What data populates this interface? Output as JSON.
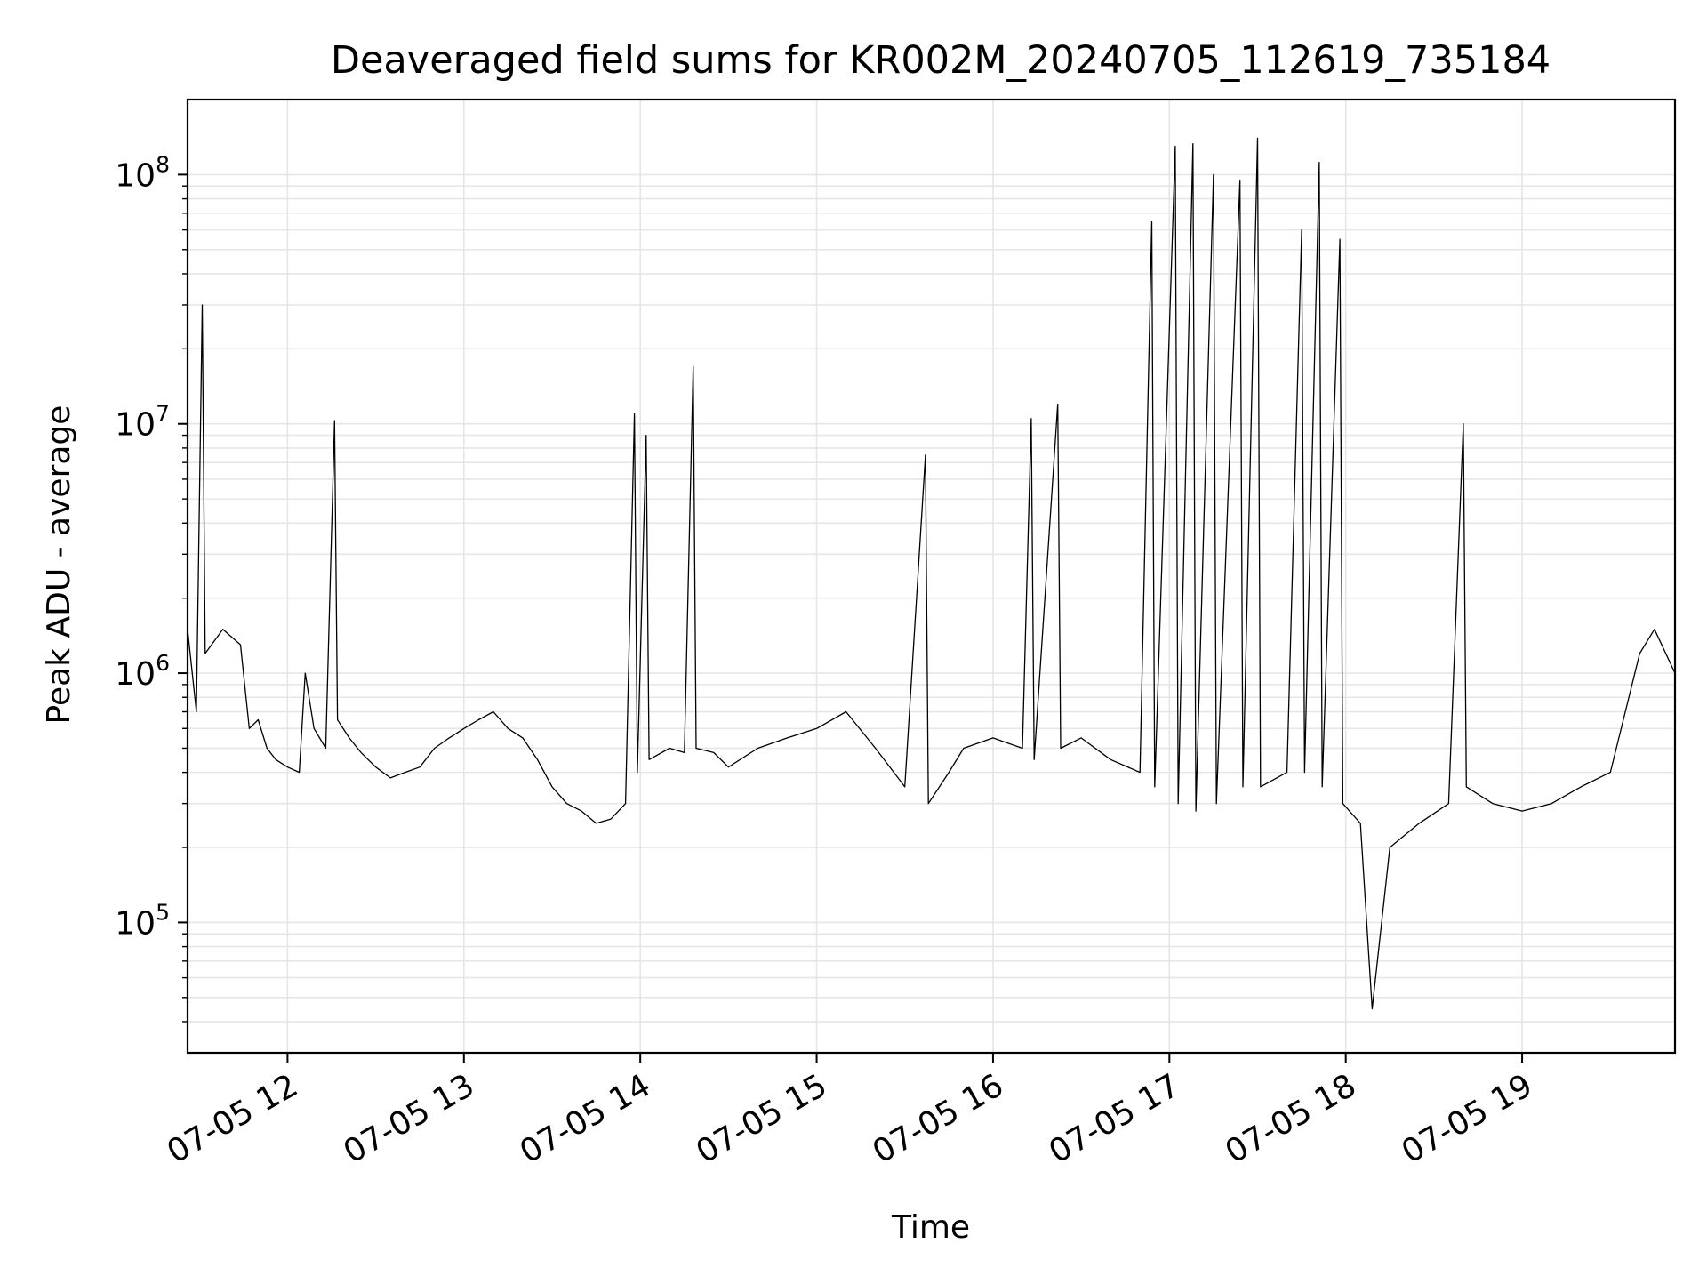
{
  "chart_data": {
    "type": "line",
    "title": "Deaveraged field sums for KR002M_20240705_112619_735184",
    "xlabel": "Time",
    "ylabel": "Peak ADU - average",
    "x_start": "2024-07-05 11:26",
    "x_end": "2024-07-05 19:52",
    "xlim": [
      "2024-07-05 11:26",
      "2024-07-05 19:52"
    ],
    "x_ticks": [
      {
        "time": "2024-07-05 12:00",
        "label": "07-05 12"
      },
      {
        "time": "2024-07-05 13:00",
        "label": "07-05 13"
      },
      {
        "time": "2024-07-05 14:00",
        "label": "07-05 14"
      },
      {
        "time": "2024-07-05 15:00",
        "label": "07-05 15"
      },
      {
        "time": "2024-07-05 16:00",
        "label": "07-05 16"
      },
      {
        "time": "2024-07-05 17:00",
        "label": "07-05 17"
      },
      {
        "time": "2024-07-05 18:00",
        "label": "07-05 18"
      },
      {
        "time": "2024-07-05 19:00",
        "label": "07-05 19"
      }
    ],
    "yscale": "log",
    "ylim": [
      30000,
      200000000
    ],
    "y_ticks": [
      {
        "value": 100000,
        "base": "10",
        "exp": "5"
      },
      {
        "value": 1000000,
        "base": "10",
        "exp": "6"
      },
      {
        "value": 10000000,
        "base": "10",
        "exp": "7"
      },
      {
        "value": 100000000,
        "base": "10",
        "exp": "8"
      }
    ],
    "grid": true,
    "line_color": "#000000",
    "series": [
      {
        "name": "",
        "points": [
          [
            "2024-07-05 11:26",
            1500000
          ],
          [
            "2024-07-05 11:29",
            700000
          ],
          [
            "2024-07-05 11:31",
            30000000
          ],
          [
            "2024-07-05 11:32",
            1200000
          ],
          [
            "2024-07-05 11:38",
            1500000
          ],
          [
            "2024-07-05 11:44",
            1300000
          ],
          [
            "2024-07-05 11:47",
            600000
          ],
          [
            "2024-07-05 11:50",
            650000
          ],
          [
            "2024-07-05 11:53",
            500000
          ],
          [
            "2024-07-05 11:56",
            450000
          ],
          [
            "2024-07-05 12:00",
            420000
          ],
          [
            "2024-07-05 12:04",
            400000
          ],
          [
            "2024-07-05 12:06",
            1000000
          ],
          [
            "2024-07-05 12:09",
            600000
          ],
          [
            "2024-07-05 12:13",
            500000
          ],
          [
            "2024-07-05 12:16",
            10300000
          ],
          [
            "2024-07-05 12:17",
            650000
          ],
          [
            "2024-07-05 12:21",
            550000
          ],
          [
            "2024-07-05 12:25",
            480000
          ],
          [
            "2024-07-05 12:30",
            420000
          ],
          [
            "2024-07-05 12:35",
            380000
          ],
          [
            "2024-07-05 12:40",
            400000
          ],
          [
            "2024-07-05 12:45",
            420000
          ],
          [
            "2024-07-05 12:50",
            500000
          ],
          [
            "2024-07-05 12:55",
            550000
          ],
          [
            "2024-07-05 13:00",
            600000
          ],
          [
            "2024-07-05 13:05",
            650000
          ],
          [
            "2024-07-05 13:10",
            700000
          ],
          [
            "2024-07-05 13:15",
            600000
          ],
          [
            "2024-07-05 13:20",
            550000
          ],
          [
            "2024-07-05 13:25",
            450000
          ],
          [
            "2024-07-05 13:30",
            350000
          ],
          [
            "2024-07-05 13:35",
            300000
          ],
          [
            "2024-07-05 13:40",
            280000
          ],
          [
            "2024-07-05 13:45",
            250000
          ],
          [
            "2024-07-05 13:50",
            260000
          ],
          [
            "2024-07-05 13:55",
            300000
          ],
          [
            "2024-07-05 13:58",
            11000000
          ],
          [
            "2024-07-05 13:59",
            400000
          ],
          [
            "2024-07-05 14:02",
            9000000
          ],
          [
            "2024-07-05 14:03",
            450000
          ],
          [
            "2024-07-05 14:10",
            500000
          ],
          [
            "2024-07-05 14:15",
            480000
          ],
          [
            "2024-07-05 14:18",
            17000000
          ],
          [
            "2024-07-05 14:19",
            500000
          ],
          [
            "2024-07-05 14:25",
            480000
          ],
          [
            "2024-07-05 14:30",
            420000
          ],
          [
            "2024-07-05 14:40",
            500000
          ],
          [
            "2024-07-05 14:50",
            550000
          ],
          [
            "2024-07-05 15:00",
            600000
          ],
          [
            "2024-07-05 15:10",
            700000
          ],
          [
            "2024-07-05 15:20",
            500000
          ],
          [
            "2024-07-05 15:30",
            350000
          ],
          [
            "2024-07-05 15:37",
            7500000
          ],
          [
            "2024-07-05 15:38",
            300000
          ],
          [
            "2024-07-05 15:45",
            400000
          ],
          [
            "2024-07-05 15:50",
            500000
          ],
          [
            "2024-07-05 16:00",
            550000
          ],
          [
            "2024-07-05 16:10",
            500000
          ],
          [
            "2024-07-05 16:13",
            10500000
          ],
          [
            "2024-07-05 16:14",
            450000
          ],
          [
            "2024-07-05 16:22",
            12000000
          ],
          [
            "2024-07-05 16:23",
            500000
          ],
          [
            "2024-07-05 16:30",
            550000
          ],
          [
            "2024-07-05 16:40",
            450000
          ],
          [
            "2024-07-05 16:50",
            400000
          ],
          [
            "2024-07-05 16:54",
            65000000
          ],
          [
            "2024-07-05 16:55",
            350000
          ],
          [
            "2024-07-05 17:02",
            130000000
          ],
          [
            "2024-07-05 17:03",
            300000
          ],
          [
            "2024-07-05 17:08",
            133000000
          ],
          [
            "2024-07-05 17:09",
            280000
          ],
          [
            "2024-07-05 17:15",
            100000000
          ],
          [
            "2024-07-05 17:16",
            300000
          ],
          [
            "2024-07-05 17:24",
            95000000
          ],
          [
            "2024-07-05 17:25",
            350000
          ],
          [
            "2024-07-05 17:30",
            140000000
          ],
          [
            "2024-07-05 17:31",
            350000
          ],
          [
            "2024-07-05 17:40",
            400000
          ],
          [
            "2024-07-05 17:45",
            60000000
          ],
          [
            "2024-07-05 17:46",
            400000
          ],
          [
            "2024-07-05 17:51",
            112000000
          ],
          [
            "2024-07-05 17:52",
            350000
          ],
          [
            "2024-07-05 17:58",
            55000000
          ],
          [
            "2024-07-05 17:59",
            300000
          ],
          [
            "2024-07-05 18:05",
            250000
          ],
          [
            "2024-07-05 18:09",
            45000
          ],
          [
            "2024-07-05 18:15",
            200000
          ],
          [
            "2024-07-05 18:25",
            250000
          ],
          [
            "2024-07-05 18:35",
            300000
          ],
          [
            "2024-07-05 18:40",
            10000000
          ],
          [
            "2024-07-05 18:41",
            350000
          ],
          [
            "2024-07-05 18:50",
            300000
          ],
          [
            "2024-07-05 19:00",
            280000
          ],
          [
            "2024-07-05 19:10",
            300000
          ],
          [
            "2024-07-05 19:20",
            350000
          ],
          [
            "2024-07-05 19:30",
            400000
          ],
          [
            "2024-07-05 19:40",
            1200000
          ],
          [
            "2024-07-05 19:45",
            1500000
          ],
          [
            "2024-07-05 19:52",
            1000000
          ]
        ]
      }
    ]
  }
}
